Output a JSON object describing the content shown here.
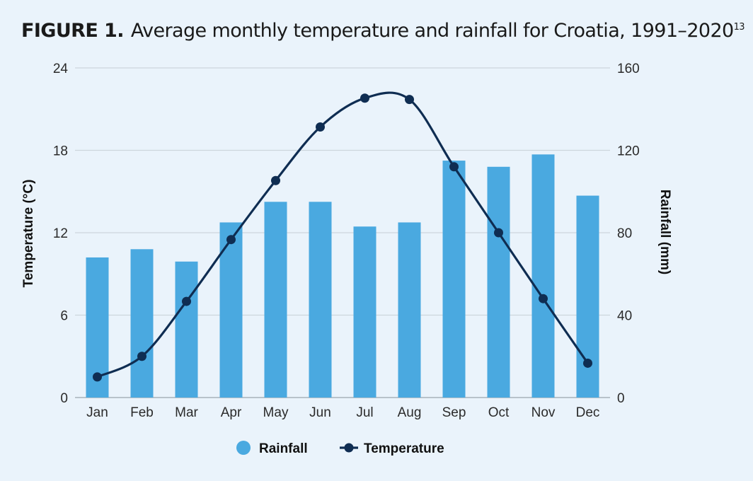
{
  "title": {
    "prefix": "FIGURE 1.",
    "text": "Average monthly temperature and rainfall for Croatia, 1991–2020",
    "superscript": "13"
  },
  "chart_data": {
    "type": "bar",
    "categories": [
      "Jan",
      "Feb",
      "Mar",
      "Apr",
      "May",
      "Jun",
      "Jul",
      "Aug",
      "Sep",
      "Oct",
      "Nov",
      "Dec"
    ],
    "series": [
      {
        "name": "Rainfall",
        "type": "bar",
        "axis": "right",
        "color": "#4aa9e0",
        "values": [
          68,
          72,
          66,
          85,
          95,
          95,
          83,
          85,
          115,
          112,
          118,
          98
        ]
      },
      {
        "name": "Temperature",
        "type": "line",
        "axis": "left",
        "color": "#0f2d52",
        "values": [
          1.5,
          3.0,
          7.0,
          11.5,
          15.8,
          19.7,
          21.8,
          21.7,
          16.8,
          12.0,
          7.2,
          2.5
        ]
      }
    ],
    "ylabel": "Temperature (°C)",
    "ylabel_right": "Rainfall (mm)",
    "ylim": [
      0,
      24
    ],
    "yticks": [
      "0",
      "6",
      "12",
      "18",
      "24"
    ],
    "ylim_right": [
      0,
      160
    ],
    "yticks_right": [
      "0",
      "40",
      "80",
      "120",
      "160"
    ],
    "grid": true,
    "legend_position": "bottom-center"
  }
}
